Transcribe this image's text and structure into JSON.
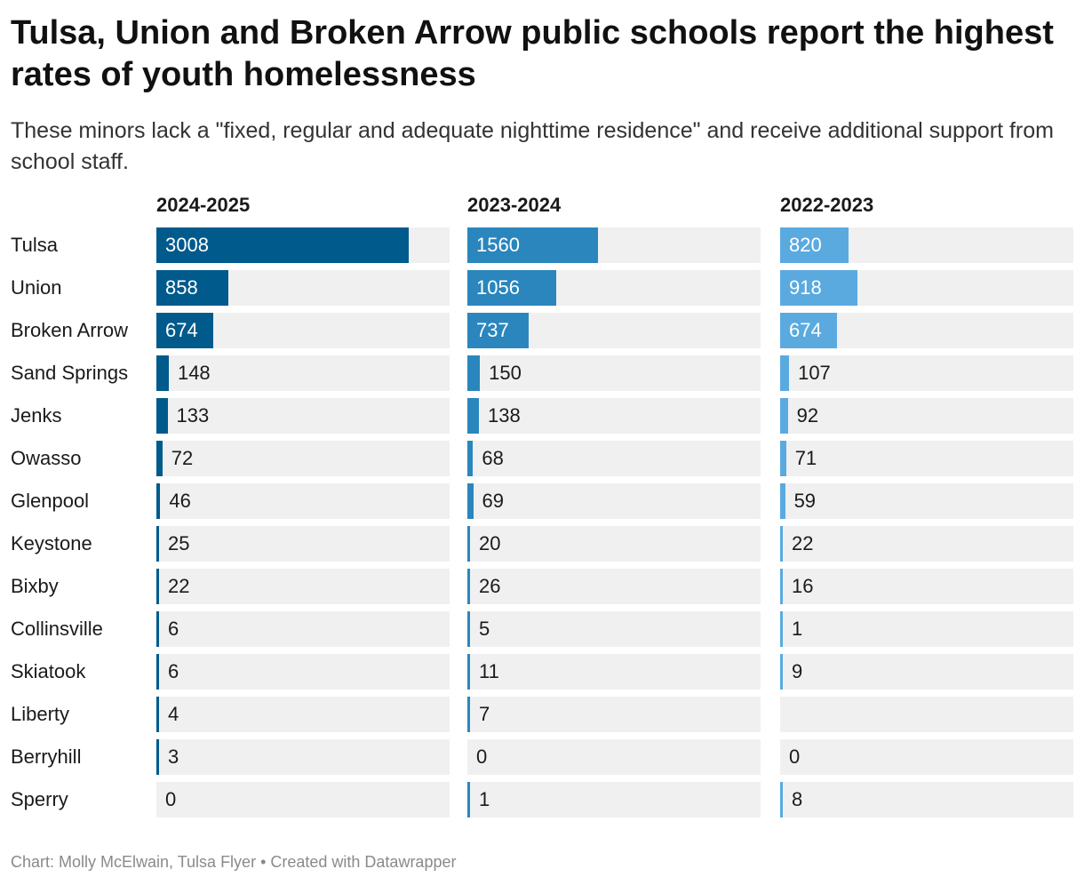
{
  "header": {
    "title": "Tulsa, Union and Broken Arrow public schools report the highest rates of youth homelessness",
    "subtitle": "These minors lack a \"fixed, regular and adequate nighttime residence\" and receive additional support from school staff."
  },
  "footer": {
    "text": "Chart: Molly McElwain, Tulsa Flyer • Created with Datawrapper"
  },
  "colors": {
    "2024-2025": "#005a8c",
    "2023-2024": "#2a86bd",
    "2022-2023": "#5aaae0",
    "track": "#f0f0f0"
  },
  "chart_data": {
    "type": "bar",
    "orientation": "horizontal",
    "layout": "small-multiples",
    "title": "Tulsa, Union and Broken Arrow public schools report the highest rates of youth homelessness",
    "xlim": [
      0,
      3500
    ],
    "categories": [
      "Tulsa",
      "Union",
      "Broken Arrow",
      "Sand Springs",
      "Jenks",
      "Owasso",
      "Glenpool",
      "Keystone",
      "Bixby",
      "Collinsville",
      "Skiatook",
      "Liberty",
      "Berryhill",
      "Sperry"
    ],
    "series": [
      {
        "name": "2024-2025",
        "values": [
          3008,
          858,
          674,
          148,
          133,
          72,
          46,
          25,
          22,
          6,
          6,
          4,
          3,
          0
        ]
      },
      {
        "name": "2023-2024",
        "values": [
          1560,
          1056,
          737,
          150,
          138,
          68,
          69,
          20,
          26,
          5,
          11,
          7,
          0,
          1
        ]
      },
      {
        "name": "2022-2023",
        "values": [
          820,
          918,
          674,
          107,
          92,
          71,
          59,
          22,
          16,
          1,
          9,
          null,
          0,
          8
        ]
      }
    ]
  }
}
